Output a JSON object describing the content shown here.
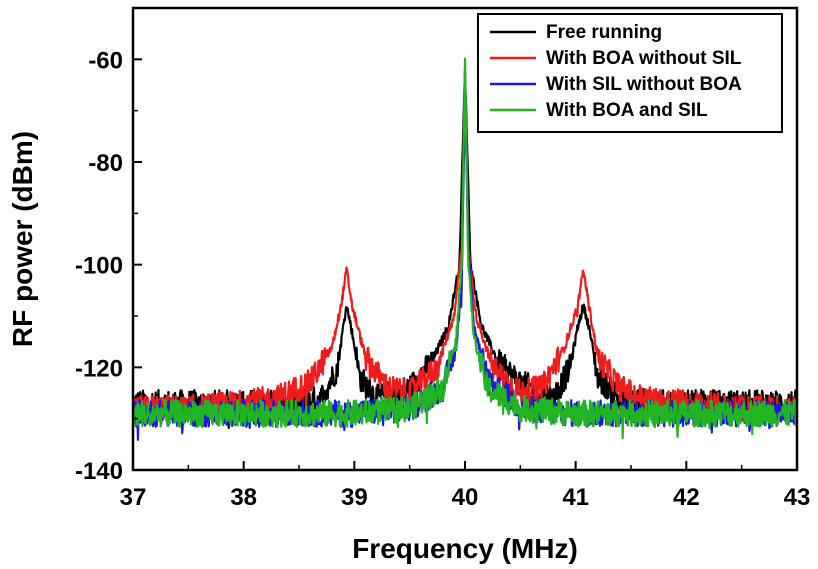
{
  "chart_data": {
    "type": "line",
    "title": "",
    "xlabel": "Frequency (MHz)",
    "ylabel": "RF power (dBm)",
    "xlim": [
      37,
      43
    ],
    "ylim": [
      -140,
      -50
    ],
    "xticks": [
      37,
      38,
      39,
      40,
      41,
      42,
      43
    ],
    "yticks": [
      -140,
      -120,
      -100,
      -80,
      -60
    ],
    "grid": false,
    "legend_position": "top-right",
    "series": [
      {
        "name": "Free running",
        "color": "#000000",
        "x": [
          37.0,
          37.5,
          38.0,
          38.5,
          38.7,
          38.85,
          38.9,
          38.93,
          38.97,
          39.05,
          39.2,
          39.5,
          39.7,
          39.85,
          39.95,
          40.0,
          40.05,
          40.15,
          40.3,
          40.5,
          40.8,
          40.95,
          41.02,
          41.07,
          41.12,
          41.2,
          41.4,
          41.7,
          42.0,
          42.5,
          43.0
        ],
        "y": [
          -127,
          -127,
          -127,
          -127,
          -126,
          -120,
          -112,
          -108,
          -112,
          -122,
          -126,
          -124,
          -119,
          -112,
          -100,
          -62,
          -100,
          -112,
          -119,
          -123,
          -126,
          -120,
          -112,
          -108,
          -112,
          -122,
          -126,
          -127,
          -127,
          -127,
          -127
        ]
      },
      {
        "name": "With BOA without SIL",
        "color": "#ee1c1c",
        "x": [
          37.0,
          37.5,
          38.0,
          38.3,
          38.6,
          38.8,
          38.88,
          38.93,
          38.98,
          39.1,
          39.3,
          39.5,
          39.75,
          39.9,
          39.97,
          40.0,
          40.03,
          40.1,
          40.25,
          40.5,
          40.7,
          40.9,
          41.02,
          41.07,
          41.12,
          41.2,
          41.4,
          41.6,
          42.0,
          42.5,
          43.0
        ],
        "y": [
          -128,
          -128,
          -127,
          -126,
          -123,
          -116,
          -108,
          -101,
          -108,
          -118,
          -124,
          -125,
          -120,
          -110,
          -97,
          -62,
          -97,
          -110,
          -120,
          -125,
          -124,
          -116,
          -108,
          -101,
          -108,
          -118,
          -124,
          -126,
          -127,
          -128,
          -128
        ]
      },
      {
        "name": "With SIL without BOA",
        "color": "#1a1ae0",
        "x": [
          37.0,
          37.5,
          38.0,
          38.5,
          39.0,
          39.5,
          39.8,
          39.92,
          39.97,
          40.0,
          40.03,
          40.08,
          40.2,
          40.5,
          41.0,
          41.5,
          42.0,
          42.5,
          43.0
        ],
        "y": [
          -129,
          -129,
          -129,
          -129,
          -129,
          -128,
          -124,
          -116,
          -104,
          -67,
          -96,
          -112,
          -122,
          -128,
          -129,
          -129,
          -129,
          -129,
          -129
        ]
      },
      {
        "name": "With BOA and SIL",
        "color": "#22b422",
        "x": [
          37.0,
          37.5,
          38.0,
          38.5,
          39.0,
          39.5,
          39.8,
          39.92,
          39.97,
          40.0,
          40.03,
          40.08,
          40.2,
          40.5,
          41.0,
          41.5,
          42.0,
          42.5,
          43.0
        ],
        "y": [
          -129,
          -129,
          -129,
          -129,
          -129,
          -128,
          -124,
          -114,
          -100,
          -60,
          -100,
          -114,
          -124,
          -128,
          -129,
          -129,
          -129,
          -129,
          -129
        ]
      }
    ]
  }
}
